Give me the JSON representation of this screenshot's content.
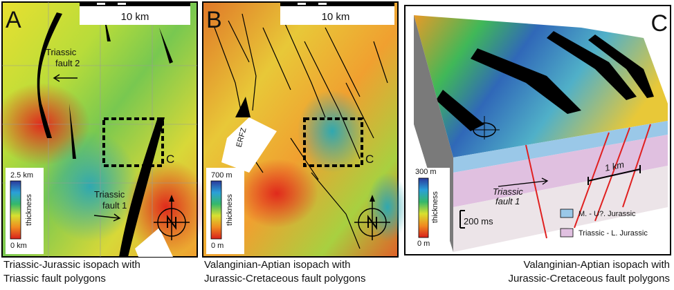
{
  "panels": [
    {
      "letter": "A",
      "scale_bar": "10 km",
      "box_label": "C",
      "annotations": [
        [
          "Triassic",
          "fault 2"
        ],
        [
          "Triassic",
          "fault 1"
        ]
      ],
      "colorbar": {
        "max": "2.5 km",
        "min": "0 km",
        "label": "thickness"
      },
      "caption": [
        "Triassic-Jurassic isopach with",
        "Triassic fault polygons"
      ]
    },
    {
      "letter": "B",
      "scale_bar": "10 km",
      "box_label": "C",
      "annotations": [
        [
          "ERFZ"
        ]
      ],
      "colorbar": {
        "max": "700 m",
        "min": "0 m",
        "label": "thickness"
      },
      "caption": [
        "Valanginian-Aptian isopach with",
        "Jurassic-Cretaceous fault polygons"
      ]
    },
    {
      "letter": "C",
      "annotations": [
        [
          "1 km"
        ],
        [
          "200 ms"
        ],
        [
          "Triassic",
          "fault 1"
        ]
      ],
      "colorbar": {
        "max": "300 m",
        "min": "0 m",
        "label": "thickness"
      },
      "legend": [
        "M. - U?. Jurassic",
        "Triassic - L. Jurassic"
      ],
      "caption": [
        "Valanginian-Aptian isopach with",
        "Jurassic-Cretaceous fault polygons"
      ]
    }
  ]
}
